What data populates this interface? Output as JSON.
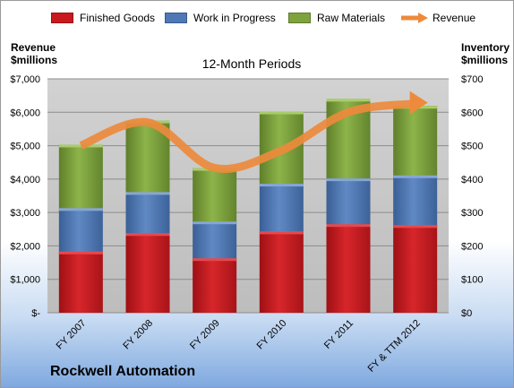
{
  "legend": {
    "finished": "Finished Goods",
    "wip": "Work in Progress",
    "raw": "Raw Materials",
    "revenue": "Revenue"
  },
  "axes": {
    "left_title_1": "Revenue",
    "left_title_2": "$millions",
    "right_title_1": "Inventory",
    "right_title_2": "$millions"
  },
  "chart_title": "12-Month Periods",
  "company": "Rockwell Automation",
  "colors": {
    "finished": "#c8191e",
    "wip": "#4f78b6",
    "raw": "#7ea33d",
    "revenue": "#ed8a3c",
    "plot_bg": "#c8c8c8"
  },
  "chart_data": {
    "type": "bar",
    "stacked": true,
    "title": "12-Month Periods",
    "categories": [
      "FY 2007",
      "FY 2008",
      "FY 2009",
      "FY 2010",
      "FY 2011",
      "FY & TTM 2012"
    ],
    "series": [
      {
        "name": "Finished Goods",
        "axis": "right",
        "values": [
          183,
          238,
          163,
          243,
          265,
          262
        ]
      },
      {
        "name": "Work in Progress",
        "axis": "right",
        "values": [
          130,
          123,
          110,
          143,
          137,
          149
        ]
      },
      {
        "name": "Raw Materials",
        "axis": "right",
        "values": [
          190,
          214,
          160,
          216,
          238,
          208
        ]
      },
      {
        "name": "Revenue",
        "type": "line",
        "axis": "left",
        "values": [
          5004,
          5698,
          4333,
          4857,
          6000,
          6260
        ]
      }
    ],
    "y_left": {
      "label": "Revenue $millions",
      "lim": [
        0,
        7000
      ],
      "ticks": [
        "$-",
        "$1,000",
        "$2,000",
        "$3,000",
        "$4,000",
        "$5,000",
        "$6,000",
        "$7,000"
      ]
    },
    "y_right": {
      "label": "Inventory $millions",
      "lim": [
        0,
        700
      ],
      "ticks": [
        "$0",
        "$100",
        "$200",
        "$300",
        "$400",
        "$500",
        "$600",
        "$700"
      ]
    },
    "grid": true,
    "legend_position": "top"
  }
}
